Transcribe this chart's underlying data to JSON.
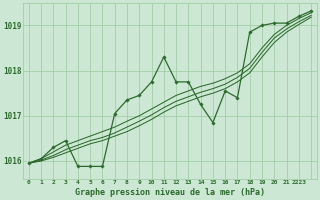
{
  "background_color": "#cce8d4",
  "grid_color": "#9ec99e",
  "line_color": "#2d6a2d",
  "title": "Graphe pression niveau de la mer (hPa)",
  "xlim": [
    -0.5,
    23.5
  ],
  "ylim": [
    1015.6,
    1019.5
  ],
  "ytick_values": [
    1016,
    1017,
    1018,
    1019
  ],
  "ytick_labels": [
    "1016",
    "1017",
    "1018",
    "1019"
  ],
  "main_x": [
    0,
    1,
    2,
    3,
    4,
    5,
    6,
    7,
    8,
    9,
    10,
    11,
    12,
    13,
    14,
    15,
    16,
    17,
    18,
    19,
    20,
    21,
    22,
    23
  ],
  "main_y": [
    1015.95,
    1016.05,
    1016.3,
    1016.45,
    1015.88,
    1015.88,
    1015.88,
    1017.05,
    1017.35,
    1017.45,
    1017.75,
    1018.3,
    1017.75,
    1017.75,
    1017.25,
    1016.85,
    1017.55,
    1017.4,
    1018.85,
    1019.0,
    1019.05,
    1019.05,
    1019.2,
    1019.32
  ],
  "line1_x": [
    0,
    1,
    2,
    3,
    4,
    5,
    6,
    7,
    8,
    9,
    10,
    11,
    12,
    13,
    14,
    15,
    16,
    17,
    18,
    19,
    20,
    21,
    22,
    23
  ],
  "line1_y": [
    1015.95,
    1016.05,
    1016.2,
    1016.35,
    1016.45,
    1016.55,
    1016.65,
    1016.75,
    1016.88,
    1017.0,
    1017.15,
    1017.3,
    1017.45,
    1017.55,
    1017.65,
    1017.72,
    1017.82,
    1017.95,
    1018.15,
    1018.5,
    1018.8,
    1019.0,
    1019.15,
    1019.28
  ],
  "line2_x": [
    0,
    1,
    2,
    3,
    4,
    5,
    6,
    7,
    8,
    9,
    10,
    11,
    12,
    13,
    14,
    15,
    16,
    17,
    18,
    19,
    20,
    21,
    22,
    23
  ],
  "line2_y": [
    1015.95,
    1016.02,
    1016.12,
    1016.25,
    1016.35,
    1016.45,
    1016.52,
    1016.62,
    1016.75,
    1016.88,
    1017.02,
    1017.18,
    1017.32,
    1017.42,
    1017.52,
    1017.6,
    1017.7,
    1017.85,
    1018.05,
    1018.4,
    1018.72,
    1018.92,
    1019.08,
    1019.22
  ],
  "line3_x": [
    0,
    1,
    2,
    3,
    4,
    5,
    6,
    7,
    8,
    9,
    10,
    11,
    12,
    13,
    14,
    15,
    16,
    17,
    18,
    19,
    20,
    21,
    22,
    23
  ],
  "line3_y": [
    1015.95,
    1016.0,
    1016.08,
    1016.18,
    1016.28,
    1016.38,
    1016.45,
    1016.55,
    1016.65,
    1016.78,
    1016.92,
    1017.08,
    1017.22,
    1017.32,
    1017.42,
    1017.5,
    1017.6,
    1017.75,
    1017.95,
    1018.3,
    1018.62,
    1018.85,
    1019.02,
    1019.18
  ]
}
